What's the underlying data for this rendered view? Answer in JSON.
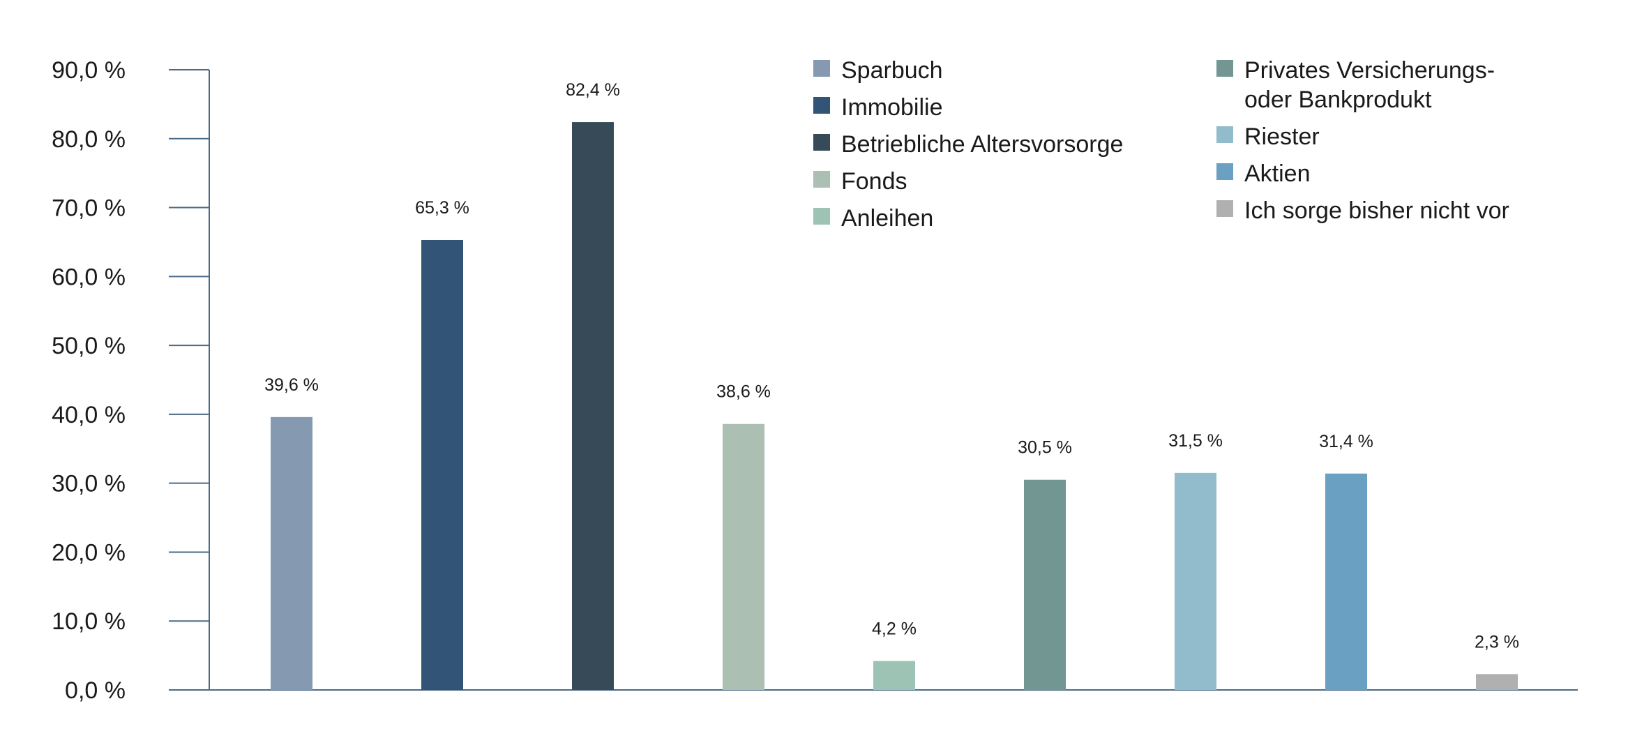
{
  "chart_data": {
    "type": "bar",
    "title": "",
    "xlabel": "",
    "ylabel": "",
    "ylim": [
      0,
      90
    ],
    "y_ticks": [
      0,
      10,
      20,
      30,
      40,
      50,
      60,
      70,
      80,
      90
    ],
    "y_tick_labels": [
      "0,0 %",
      "10,0 %",
      "20,0 %",
      "30,0 %",
      "40,0 %",
      "50,0 %",
      "60,0 %",
      "70,0 %",
      "80,0 %",
      "90,0 %"
    ],
    "grid": false,
    "legend_position": "top-right",
    "categories": [
      "Sparbuch",
      "Immobilie",
      "Betriebliche Altersvorsorge",
      "Fonds",
      "Anleihen",
      "Privates Versicherungs- oder Bankprodukt",
      "Riester",
      "Aktien",
      "Ich sorge bisher nicht vor"
    ],
    "values": [
      39.6,
      65.3,
      82.4,
      38.6,
      4.2,
      30.5,
      31.5,
      31.4,
      2.3
    ],
    "data_labels": [
      "39,6 %",
      "65,3 %",
      "82,4 %",
      "38,6 %",
      "4,2 %",
      "30,5 %",
      "31,5 %",
      "31,4 %",
      "2,3 %"
    ],
    "colors": [
      "#8599b0",
      "#325477",
      "#364b57",
      "#abbfb3",
      "#9dc3b4",
      "#729692",
      "#92bccb",
      "#6aa0c1",
      "#b0b0b0"
    ],
    "axis_color": "#4a6a86",
    "legend": {
      "columns": [
        [
          {
            "lines": [
              "Sparbuch"
            ],
            "series_index": 0
          },
          {
            "lines": [
              "Immobilie"
            ],
            "series_index": 1
          },
          {
            "lines": [
              "Betriebliche Altersvorsorge"
            ],
            "series_index": 2
          },
          {
            "lines": [
              "Fonds"
            ],
            "series_index": 3
          },
          {
            "lines": [
              "Anleihen"
            ],
            "series_index": 4
          }
        ],
        [
          {
            "lines": [
              "Privates Versicherungs-",
              "oder Bankprodukt"
            ],
            "series_index": 5
          },
          {
            "lines": [
              "Riester"
            ],
            "series_index": 6
          },
          {
            "lines": [
              "Aktien"
            ],
            "series_index": 7
          },
          {
            "lines": [
              "Ich sorge bisher nicht vor"
            ],
            "series_index": 8
          }
        ]
      ]
    }
  }
}
